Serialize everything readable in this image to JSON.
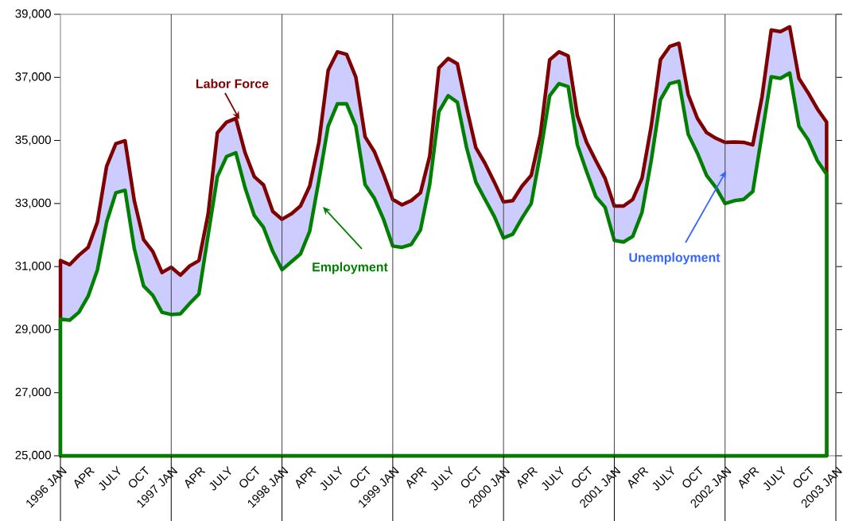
{
  "chart_data": {
    "type": "area",
    "categories": [
      "1996 JAN",
      null,
      null,
      "APR",
      null,
      null,
      "JULY",
      null,
      null,
      "OCT",
      null,
      null,
      "1997 JAN",
      null,
      null,
      "APR",
      null,
      null,
      "JULY",
      null,
      null,
      "OCT",
      null,
      null,
      "1998 JAN",
      null,
      null,
      "APR",
      null,
      null,
      "JULY",
      null,
      null,
      "OCT",
      null,
      null,
      "1999 JAN",
      null,
      null,
      "APR",
      null,
      null,
      "JULY",
      null,
      null,
      "OCT",
      null,
      null,
      "2000 JAN",
      null,
      null,
      "APR",
      null,
      null,
      "JULY",
      null,
      null,
      "OCT",
      null,
      null,
      "2001 JAN",
      null,
      null,
      "APR",
      null,
      null,
      "JULY",
      null,
      null,
      "OCT",
      null,
      null,
      "2002 JAN",
      null,
      null,
      "APR",
      null,
      null,
      "JULY",
      null,
      null,
      "OCT",
      null,
      null,
      "2003 JAN"
    ],
    "series": [
      {
        "name": "Labor Force",
        "color": "#800000",
        "values": [
          31190,
          31060,
          31360,
          31610,
          32410,
          34180,
          34900,
          34990,
          33090,
          31860,
          31480,
          30810,
          30980,
          30730,
          31020,
          31190,
          32670,
          35240,
          35580,
          35700,
          34610,
          33850,
          33590,
          32750,
          32500,
          32670,
          32920,
          33550,
          34940,
          37220,
          37810,
          37730,
          37010,
          35120,
          34650,
          33930,
          33130,
          32960,
          33090,
          33340,
          34500,
          37300,
          37600,
          37430,
          36040,
          34770,
          34270,
          33680,
          33050,
          33090,
          33550,
          33890,
          35200,
          37560,
          37810,
          37680,
          35790,
          34940,
          34360,
          33800,
          32920,
          32920,
          33130,
          33800,
          35450,
          37560,
          37980,
          38080,
          36460,
          35700,
          35250,
          35070,
          34940,
          34950,
          34940,
          34860,
          36380,
          38500,
          38450,
          38600,
          36970,
          36510,
          36000,
          35580,
          null
        ]
      },
      {
        "name": "Employment",
        "color": "#008000",
        "values": [
          29330,
          29300,
          29550,
          30060,
          30890,
          32410,
          33340,
          33420,
          31570,
          30390,
          30090,
          29550,
          29480,
          29500,
          29830,
          30130,
          32000,
          33850,
          34490,
          34610,
          33500,
          32620,
          32240,
          31480,
          30900,
          31150,
          31400,
          32120,
          33740,
          35450,
          36160,
          36160,
          35450,
          33600,
          33170,
          32500,
          31650,
          31610,
          31700,
          32160,
          33600,
          35910,
          36420,
          36210,
          34770,
          33680,
          33130,
          32590,
          31910,
          32030,
          32540,
          33000,
          34610,
          36420,
          36800,
          36710,
          34860,
          34010,
          33220,
          32880,
          31830,
          31780,
          31960,
          32720,
          34360,
          36290,
          36800,
          36880,
          35200,
          34600,
          33890,
          33510,
          33000,
          33090,
          33130,
          33380,
          35200,
          37020,
          36970,
          37140,
          35450,
          35020,
          34360,
          33930,
          null
        ]
      }
    ],
    "ylim": [
      25000,
      39000
    ],
    "yticks": [
      {
        "value": 25000,
        "label": "25,000"
      },
      {
        "value": 27000,
        "label": "27,000"
      },
      {
        "value": 29000,
        "label": "29,000"
      },
      {
        "value": 31000,
        "label": "31,000"
      },
      {
        "value": 33000,
        "label": "33,000"
      },
      {
        "value": 35000,
        "label": "35,000"
      },
      {
        "value": 37000,
        "label": "37,000"
      },
      {
        "value": 39000,
        "label": "39,000"
      }
    ],
    "annotations": [
      "Unemployment"
    ],
    "grid": "x",
    "legend": false,
    "marker": "none",
    "line_style": "solid"
  }
}
